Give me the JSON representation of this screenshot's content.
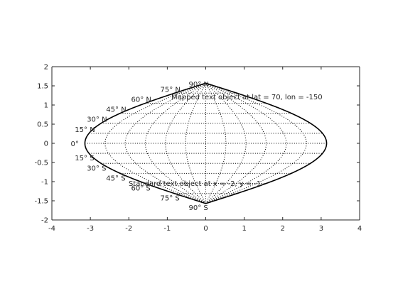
{
  "chart_data": {
    "type": "map",
    "projection": "sinusoidal",
    "xlim": [
      -4,
      4
    ],
    "ylim": [
      -2,
      2
    ],
    "x_ticks": [
      "-4",
      "-3",
      "-2",
      "-1",
      "0",
      "1",
      "2",
      "3",
      "4"
    ],
    "y_ticks": [
      "2",
      "1.5",
      "1",
      "0.5",
      "0",
      "-0.5",
      "-1",
      "-1.5",
      "-2"
    ],
    "grid": false,
    "frame_lat_range_deg": [
      -90,
      90
    ],
    "frame_lon_range_deg": [
      -180,
      180
    ],
    "parallels_deg": [
      -75,
      -60,
      -45,
      -30,
      -15,
      0,
      15,
      30,
      45,
      60,
      75
    ],
    "meridians_deg": [
      -150,
      -120,
      -90,
      -60,
      -30,
      0,
      30,
      60,
      90,
      120,
      150
    ],
    "latitude_labels": [
      {
        "lat": 90,
        "text": "90° N"
      },
      {
        "lat": 75,
        "text": "75° N"
      },
      {
        "lat": 60,
        "text": "60° N"
      },
      {
        "lat": 45,
        "text": "45° N"
      },
      {
        "lat": 30,
        "text": "30° N"
      },
      {
        "lat": 15,
        "text": "15° N"
      },
      {
        "lat": 0,
        "text": "0°"
      },
      {
        "lat": -15,
        "text": "15° S"
      },
      {
        "lat": -30,
        "text": "30° S"
      },
      {
        "lat": -45,
        "text": "45° S"
      },
      {
        "lat": -60,
        "text": "60° S"
      },
      {
        "lat": -75,
        "text": "75° S"
      },
      {
        "lat": -90,
        "text": "90° S"
      }
    ],
    "annotations": [
      {
        "text": "Mapped text object at lat = 70, lon = -150"
      },
      {
        "text": "Standard text object at x = -2, y = -1",
        "x": -2,
        "y": -1
      }
    ]
  }
}
